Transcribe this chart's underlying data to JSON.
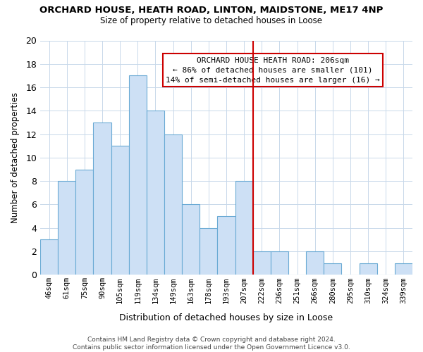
{
  "title": "ORCHARD HOUSE, HEATH ROAD, LINTON, MAIDSTONE, ME17 4NP",
  "subtitle": "Size of property relative to detached houses in Loose",
  "xlabel": "Distribution of detached houses by size in Loose",
  "ylabel": "Number of detached properties",
  "categories": [
    "46sqm",
    "61sqm",
    "75sqm",
    "90sqm",
    "105sqm",
    "119sqm",
    "134sqm",
    "149sqm",
    "163sqm",
    "178sqm",
    "193sqm",
    "207sqm",
    "222sqm",
    "236sqm",
    "251sqm",
    "266sqm",
    "280sqm",
    "295sqm",
    "310sqm",
    "324sqm",
    "339sqm"
  ],
  "values": [
    3,
    8,
    9,
    13,
    11,
    17,
    14,
    12,
    6,
    4,
    5,
    8,
    2,
    2,
    0,
    2,
    1,
    0,
    1,
    0,
    1
  ],
  "bar_color": "#cde0f5",
  "bar_edge_color": "#6aaad4",
  "highlight_index": 11,
  "highlight_line_color": "#cc0000",
  "ylim": [
    0,
    20
  ],
  "yticks": [
    0,
    2,
    4,
    6,
    8,
    10,
    12,
    14,
    16,
    18,
    20
  ],
  "annotation_title": "ORCHARD HOUSE HEATH ROAD: 206sqm",
  "annotation_line1": "← 86% of detached houses are smaller (101)",
  "annotation_line2": "14% of semi-detached houses are larger (16) →",
  "annotation_box_color": "#ffffff",
  "annotation_box_edge": "#cc0000",
  "footer_line1": "Contains HM Land Registry data © Crown copyright and database right 2024.",
  "footer_line2": "Contains public sector information licensed under the Open Government Licence v3.0.",
  "background_color": "#ffffff",
  "grid_color": "#c8d8ea"
}
